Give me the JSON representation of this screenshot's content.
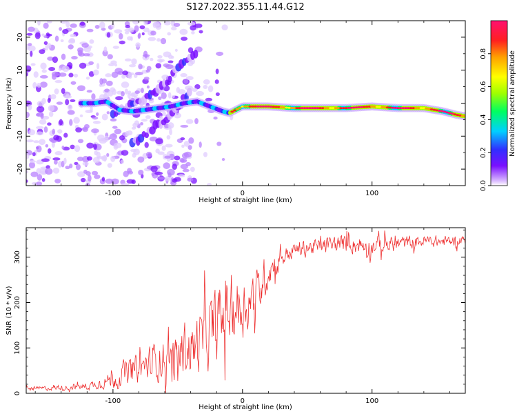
{
  "title": "S127.2022.355.11.44.G12",
  "colors": {
    "snr_line": "#ee3030",
    "axis": "#000000"
  },
  "chart_data": [
    {
      "type": "heatmap",
      "name": "spectrogram",
      "xlabel": "Height of straight line (km)",
      "ylabel": "Frequency (Hz)",
      "xlim": [
        -167,
        172
      ],
      "ylim": [
        -25,
        25
      ],
      "xticks": [
        -100,
        0,
        100
      ],
      "xtick_labels": [
        "-100",
        "0",
        "100"
      ],
      "yticks": [
        -20,
        -10,
        0,
        10,
        20
      ],
      "ytick_labels": [
        "-20",
        "-10",
        "0",
        "10",
        "20"
      ],
      "colorbar": {
        "label": "Normalized spectral amplitude",
        "range": [
          0,
          1
        ],
        "ticks": [
          0,
          0.2,
          0.4,
          0.6,
          0.8
        ],
        "tick_labels": [
          "0.0",
          "0.2",
          "0.4",
          "0.6",
          "0.8"
        ],
        "colors": [
          "#ffffff",
          "#d9b8ff",
          "#7a10ff",
          "#3030ff",
          "#00d0ff",
          "#00ff60",
          "#a0ff00",
          "#ffff00",
          "#ffa000",
          "#ff2020",
          "#ff1070"
        ]
      },
      "ridge": {
        "x": [
          -125,
          -115,
          -105,
          -95,
          -85,
          -75,
          -65,
          -55,
          -45,
          -35,
          -25,
          -15,
          -10,
          -5,
          0,
          20,
          40,
          60,
          80,
          100,
          120,
          140,
          155,
          165,
          172
        ],
        "freq": [
          0,
          0,
          0.5,
          -2,
          -2.5,
          -2,
          -1.5,
          -1,
          0,
          0.5,
          -1,
          -2.5,
          -3,
          -2,
          -1,
          -1,
          -1.5,
          -1.5,
          -1.5,
          -1,
          -1.5,
          -1.5,
          -2.5,
          -3.5,
          -4
        ]
      },
      "branches": [
        {
          "x": [
            -100,
            -75,
            -58,
            -45,
            -35
          ],
          "freq": [
            -3,
            1,
            7,
            12,
            16
          ]
        },
        {
          "x": [
            -85,
            -70,
            -55,
            -48,
            -40
          ],
          "freq": [
            -12,
            -8,
            -4,
            0,
            4
          ]
        }
      ]
    },
    {
      "type": "line",
      "name": "snr",
      "xlabel": "Height of straight line (km)",
      "ylabel": "SNR (10 * v/v)",
      "xlim": [
        -167,
        172
      ],
      "ylim": [
        0,
        365
      ],
      "xticks": [
        -100,
        0,
        100
      ],
      "xtick_labels": [
        "-100",
        "0",
        "100"
      ],
      "yticks": [
        0,
        100,
        200,
        300
      ],
      "ytick_labels": [
        "0",
        "100",
        "200",
        "300"
      ],
      "trend": {
        "x": [
          -167,
          -140,
          -120,
          -100,
          -90,
          -80,
          -70,
          -60,
          -50,
          -40,
          -30,
          -20,
          -10,
          0,
          10,
          20,
          30,
          40,
          60,
          80,
          100,
          120,
          140,
          160,
          172
        ],
        "y": [
          10,
          12,
          15,
          30,
          45,
          55,
          65,
          75,
          85,
          100,
          120,
          150,
          185,
          190,
          215,
          270,
          300,
          315,
          325,
          330,
          325,
          330,
          335,
          335,
          340
        ]
      },
      "noise_amplitude": {
        "x": [
          -167,
          -130,
          -110,
          -90,
          -60,
          -40,
          -30,
          -20,
          -10,
          0,
          15,
          30,
          60,
          100,
          130,
          172
        ],
        "y": [
          6,
          8,
          15,
          40,
          60,
          80,
          100,
          110,
          110,
          90,
          70,
          25,
          25,
          30,
          20,
          15
        ]
      }
    }
  ]
}
